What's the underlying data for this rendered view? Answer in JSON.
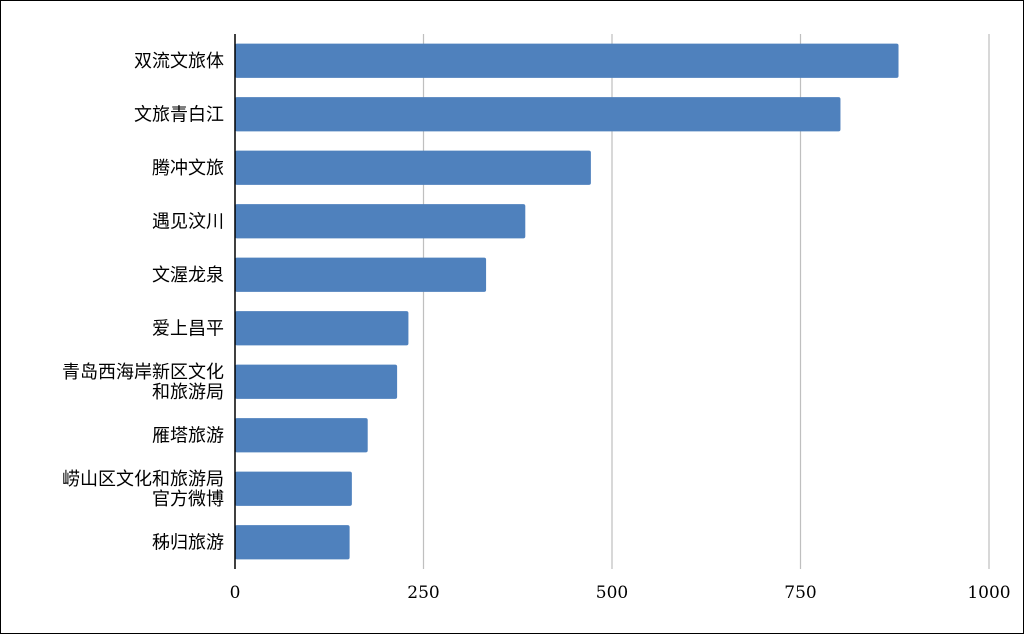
{
  "chart_data": {
    "type": "bar",
    "orientation": "horizontal",
    "categories": [
      [
        "双流文旅体"
      ],
      [
        "文旅青白江"
      ],
      [
        "腾冲文旅"
      ],
      [
        "遇见汶川"
      ],
      [
        "文渥龙泉"
      ],
      [
        "爱上昌平"
      ],
      [
        "青岛西海岸新区文化",
        "和旅游局"
      ],
      [
        "雁塔旅游"
      ],
      [
        "崂山区文化和旅游局",
        "官方微博"
      ],
      [
        "秭归旅游"
      ]
    ],
    "values": [
      880,
      803,
      472,
      385,
      333,
      230,
      215,
      176,
      155,
      152
    ],
    "xlim": [
      0,
      1000
    ],
    "xticks": [
      0,
      250,
      500,
      750,
      1000
    ],
    "grid": "vertical",
    "bar_color": "#4f81bd",
    "grid_color": "#bfbfbf",
    "axis_color": "#000000"
  }
}
